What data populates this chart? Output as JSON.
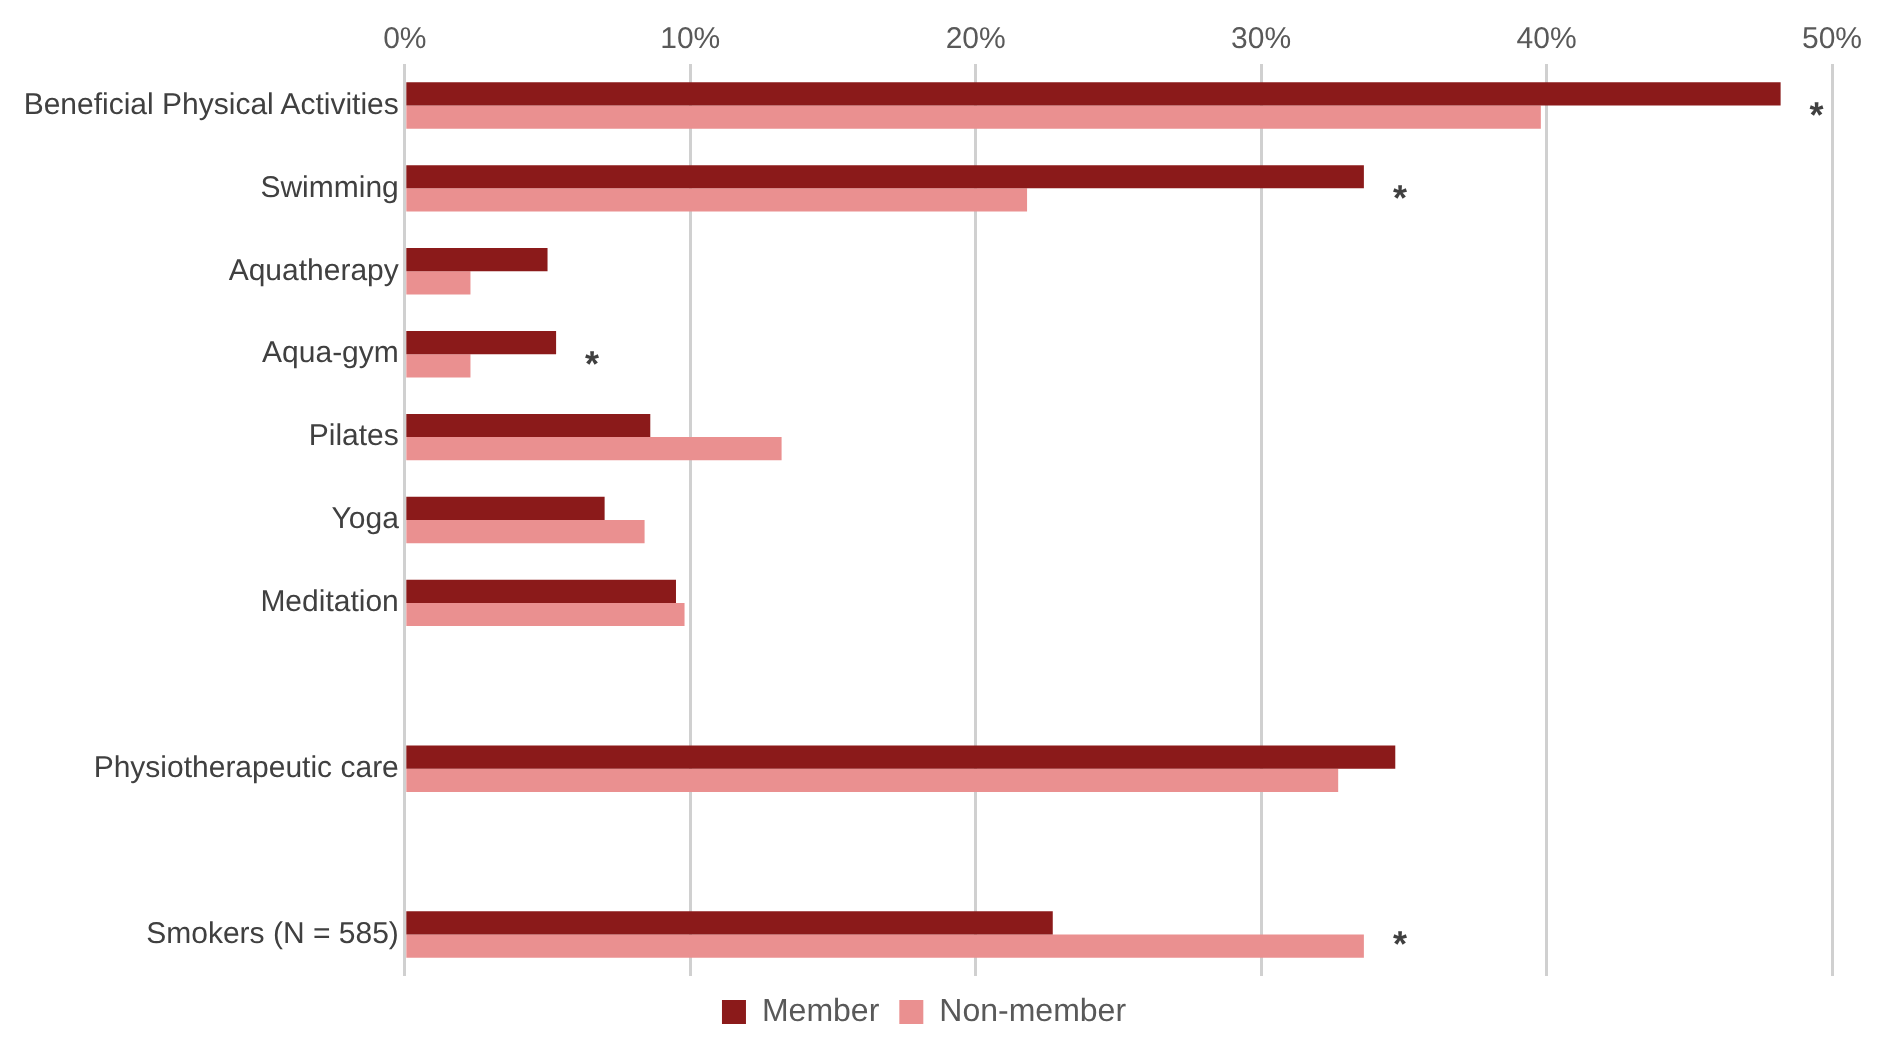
{
  "chart_data": {
    "type": "bar",
    "orientation": "horizontal",
    "categories": [
      "Beneficial Physical Activities",
      "Swimming",
      "Aquatherapy",
      "Aqua-gym",
      "Pilates",
      "Yoga",
      "Meditation",
      null,
      "Physiotherapeutic care",
      null,
      "Smokers (N = 585)"
    ],
    "series": [
      {
        "name": "Member",
        "color": "#8b1a1a",
        "values": [
          48.2,
          33.6,
          5.0,
          5.3,
          8.6,
          7.0,
          9.5,
          null,
          34.7,
          null,
          22.7
        ]
      },
      {
        "name": "Non-member",
        "color": "#ea9090",
        "values": [
          39.8,
          21.8,
          2.3,
          2.3,
          13.2,
          8.4,
          9.8,
          null,
          32.7,
          null,
          33.6
        ]
      }
    ],
    "xlim": [
      0,
      50
    ],
    "xticks": [
      {
        "value": 0,
        "label": "0%"
      },
      {
        "value": 10,
        "label": "10%"
      },
      {
        "value": 20,
        "label": "20%"
      },
      {
        "value": 30,
        "label": "30%"
      },
      {
        "value": 40,
        "label": "40%"
      },
      {
        "value": 50,
        "label": "50%"
      }
    ],
    "grid": "x",
    "legend": "bottom",
    "annotations": [
      {
        "text": "*",
        "x": 48.2,
        "y": "Beneficial Physical Activities"
      },
      {
        "text": "*",
        "x": 33.6,
        "y": "Swimming"
      },
      {
        "text": "*",
        "x": 5.3,
        "y": "Aqua-gym"
      },
      {
        "text": "*",
        "x": 33.6,
        "y": "Smokers (N = 585)"
      }
    ]
  }
}
